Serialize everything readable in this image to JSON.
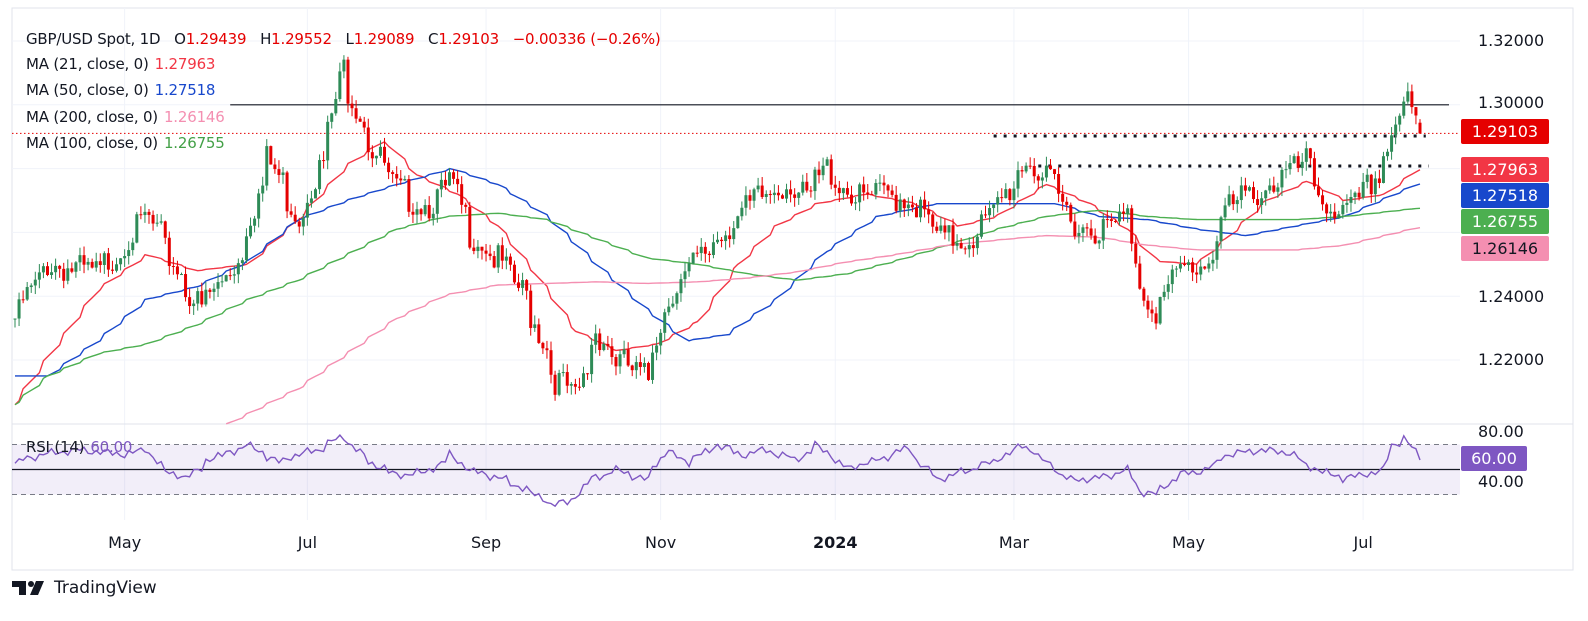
{
  "header": {
    "symbol": "GBP/USD Spot, 1D",
    "open_label": "O",
    "open": "1.29439",
    "high_label": "H",
    "high": "1.29552",
    "low_label": "L",
    "low": "1.29089",
    "close_label": "C",
    "close": "1.29103",
    "change": "−0.00336 (−0.26%)"
  },
  "indicators": [
    {
      "label": "MA (21, close, 0)",
      "value": "1.27963",
      "color": "#f23645"
    },
    {
      "label": "MA (50, close, 0)",
      "value": "1.27518",
      "color": "#1848cc"
    },
    {
      "label": "MA (200, close, 0)",
      "value": "1.26146",
      "color": "#f48fb1"
    },
    {
      "label": "MA (100, close, 0)",
      "value": "1.26755",
      "color": "#4caf50"
    }
  ],
  "rsi": {
    "label": "RSI (14)",
    "value": "60.00",
    "color": "#7e57c2"
  },
  "price_axis": [
    "1.32000",
    "1.30000",
    "1.24000",
    "1.22000"
  ],
  "rsi_axis": [
    "80.00",
    "40.00"
  ],
  "time_axis": [
    {
      "label": "May",
      "date": "2023-05-01"
    },
    {
      "label": "Jul",
      "date": "2023-07-03"
    },
    {
      "label": "Sep",
      "date": "2023-09-01"
    },
    {
      "label": "Nov",
      "date": "2023-11-01"
    },
    {
      "label": "2024",
      "date": "2024-01-01"
    },
    {
      "label": "Mar",
      "date": "2024-03-01"
    },
    {
      "label": "May",
      "date": "2024-05-01"
    },
    {
      "label": "Jul",
      "date": "2024-07-01"
    }
  ],
  "badges": {
    "last_price": "1.29103",
    "ma21": "1.27963",
    "ma50": "1.27518",
    "ma100": "1.26755",
    "ma200": "1.26146",
    "rsi": "60.00"
  },
  "brand": "TradingView",
  "chart_data": {
    "type": "candlestick",
    "title": "GBP/USD Spot, 1D",
    "ylim": [
      1.195,
      1.325
    ],
    "colors": {
      "up": "#2e8b57",
      "down": "#e50000"
    },
    "last_bar": {
      "date": "2024-07-19",
      "o": 1.29439,
      "h": 1.29552,
      "l": 1.29089,
      "c": 1.29103
    },
    "close_approx": [
      [
        "2023-03-23",
        1.233
      ],
      [
        "2023-04-04",
        1.25
      ],
      [
        "2023-04-21",
        1.247
      ],
      [
        "2023-05-08",
        1.265
      ],
      [
        "2023-05-26",
        1.236
      ],
      [
        "2023-06-08",
        1.251
      ],
      [
        "2023-06-19",
        1.283
      ],
      [
        "2023-06-29",
        1.265
      ],
      [
        "2023-07-09",
        1.286
      ],
      [
        "2023-07-14",
        1.312
      ],
      [
        "2023-07-25",
        1.286
      ],
      [
        "2023-08-02",
        1.273
      ],
      [
        "2023-08-13",
        1.268
      ],
      [
        "2023-08-21",
        1.276
      ],
      [
        "2023-08-26",
        1.262
      ],
      [
        "2023-09-06",
        1.251
      ],
      [
        "2023-09-16",
        1.239
      ],
      [
        "2023-09-26",
        1.214
      ],
      [
        "2023-10-03",
        1.2075
      ],
      [
        "2023-10-10",
        1.229
      ],
      [
        "2023-10-17",
        1.22
      ],
      [
        "2023-10-27",
        1.214
      ],
      [
        "2023-11-03",
        1.239
      ],
      [
        "2023-11-14",
        1.251
      ],
      [
        "2023-11-24",
        1.262
      ],
      [
        "2023-12-04",
        1.27
      ],
      [
        "2023-12-15",
        1.276
      ],
      [
        "2023-12-21",
        1.27
      ],
      [
        "2023-12-28",
        1.28
      ],
      [
        "2024-01-08",
        1.27
      ],
      [
        "2024-01-18",
        1.272
      ],
      [
        "2024-01-28",
        1.27
      ],
      [
        "2024-02-04",
        1.258
      ],
      [
        "2024-02-15",
        1.258
      ],
      [
        "2024-02-25",
        1.267
      ],
      [
        "2024-03-06",
        1.283
      ],
      [
        "2024-03-17",
        1.272
      ],
      [
        "2024-03-23",
        1.262
      ],
      [
        "2024-04-03",
        1.261
      ],
      [
        "2024-04-10",
        1.265
      ],
      [
        "2024-04-13",
        1.247
      ],
      [
        "2024-04-20",
        1.234
      ],
      [
        "2024-04-27",
        1.248
      ],
      [
        "2024-05-07",
        1.25
      ],
      [
        "2024-05-14",
        1.267
      ],
      [
        "2024-05-25",
        1.273
      ],
      [
        "2024-06-04",
        1.278
      ],
      [
        "2024-06-11",
        1.282
      ],
      [
        "2024-06-14",
        1.272
      ],
      [
        "2024-06-24",
        1.265
      ],
      [
        "2024-07-01",
        1.272
      ],
      [
        "2024-07-08",
        1.284
      ],
      [
        "2024-07-12",
        1.298
      ],
      [
        "2024-07-16",
        1.3
      ],
      [
        "2024-07-19",
        1.29103
      ]
    ],
    "moving_averages": [
      {
        "name": "MA (21, close, 0)",
        "color": "#f23645",
        "points": [
          [
            "2023-03-23",
            1.206
          ],
          [
            "2023-04-04",
            1.221
          ],
          [
            "2023-04-21",
            1.242
          ],
          [
            "2023-05-08",
            1.253
          ],
          [
            "2023-05-25",
            1.248
          ],
          [
            "2023-06-12",
            1.25
          ],
          [
            "2023-06-29",
            1.264
          ],
          [
            "2023-07-16",
            1.281
          ],
          [
            "2023-07-29",
            1.289
          ],
          [
            "2023-08-09",
            1.278
          ],
          [
            "2023-08-23",
            1.272
          ],
          [
            "2023-09-06",
            1.262
          ],
          [
            "2023-09-19",
            1.247
          ],
          [
            "2023-10-03",
            1.229
          ],
          [
            "2023-10-17",
            1.223
          ],
          [
            "2023-10-31",
            1.225
          ],
          [
            "2023-11-14",
            1.232
          ],
          [
            "2023-11-28",
            1.25
          ],
          [
            "2023-12-11",
            1.262
          ],
          [
            "2023-12-25",
            1.269
          ],
          [
            "2024-01-11",
            1.272
          ],
          [
            "2024-01-28",
            1.269
          ],
          [
            "2024-02-12",
            1.262
          ],
          [
            "2024-02-25",
            1.265
          ],
          [
            "2024-03-13",
            1.275
          ],
          [
            "2024-03-28",
            1.269
          ],
          [
            "2024-04-10",
            1.261
          ],
          [
            "2024-04-20",
            1.251
          ],
          [
            "2024-05-04",
            1.25
          ],
          [
            "2024-05-14",
            1.258
          ],
          [
            "2024-05-28",
            1.27
          ],
          [
            "2024-06-11",
            1.276
          ],
          [
            "2024-06-24",
            1.27
          ],
          [
            "2024-07-08",
            1.272
          ],
          [
            "2024-07-19",
            1.27963
          ]
        ]
      },
      {
        "name": "MA (50, close, 0)",
        "color": "#1848cc",
        "points": [
          [
            "2023-03-23",
            1.215
          ],
          [
            "2023-04-04",
            1.215
          ],
          [
            "2023-04-21",
            1.226
          ],
          [
            "2023-05-08",
            1.239
          ],
          [
            "2023-05-25",
            1.243
          ],
          [
            "2023-06-12",
            1.251
          ],
          [
            "2023-06-29",
            1.264
          ],
          [
            "2023-07-16",
            1.27
          ],
          [
            "2023-08-02",
            1.275
          ],
          [
            "2023-08-21",
            1.28
          ],
          [
            "2023-09-06",
            1.275
          ],
          [
            "2023-09-23",
            1.265
          ],
          [
            "2023-10-10",
            1.25
          ],
          [
            "2023-10-27",
            1.236
          ],
          [
            "2023-11-10",
            1.226
          ],
          [
            "2023-11-24",
            1.228
          ],
          [
            "2023-12-11",
            1.239
          ],
          [
            "2023-12-28",
            1.254
          ],
          [
            "2024-01-15",
            1.265
          ],
          [
            "2024-02-04",
            1.269
          ],
          [
            "2024-02-25",
            1.269
          ],
          [
            "2024-03-17",
            1.269
          ],
          [
            "2024-03-31",
            1.265
          ],
          [
            "2024-04-17",
            1.264
          ],
          [
            "2024-05-04",
            1.261
          ],
          [
            "2024-05-21",
            1.259
          ],
          [
            "2024-06-07",
            1.262
          ],
          [
            "2024-06-24",
            1.265
          ],
          [
            "2024-07-19",
            1.27518
          ]
        ]
      },
      {
        "name": "MA (100, close, 0)",
        "color": "#4caf50",
        "points": [
          [
            "2023-03-23",
            1.206
          ],
          [
            "2023-04-04",
            1.215
          ],
          [
            "2023-04-21",
            1.222
          ],
          [
            "2023-05-08",
            1.225
          ],
          [
            "2023-05-25",
            1.231
          ],
          [
            "2023-06-12",
            1.239
          ],
          [
            "2023-06-29",
            1.245
          ],
          [
            "2023-07-16",
            1.253
          ],
          [
            "2023-08-02",
            1.261
          ],
          [
            "2023-08-19",
            1.265
          ],
          [
            "2023-09-06",
            1.266
          ],
          [
            "2023-09-23",
            1.264
          ],
          [
            "2023-10-10",
            1.258
          ],
          [
            "2023-10-27",
            1.252
          ],
          [
            "2023-11-14",
            1.25
          ],
          [
            "2023-12-01",
            1.247
          ],
          [
            "2023-12-18",
            1.245
          ],
          [
            "2024-01-04",
            1.247
          ],
          [
            "2024-01-21",
            1.251
          ],
          [
            "2024-02-08",
            1.256
          ],
          [
            "2024-02-25",
            1.261
          ],
          [
            "2024-03-13",
            1.265
          ],
          [
            "2024-03-31",
            1.267
          ],
          [
            "2024-04-17",
            1.265
          ],
          [
            "2024-05-04",
            1.264
          ],
          [
            "2024-05-21",
            1.264
          ],
          [
            "2024-06-07",
            1.264
          ],
          [
            "2024-06-24",
            1.265
          ],
          [
            "2024-07-19",
            1.26755
          ]
        ]
      },
      {
        "name": "MA (200, close, 0)",
        "color": "#f48fb1",
        "points": [
          [
            "2023-06-05",
            1.2
          ],
          [
            "2023-06-29",
            1.211
          ],
          [
            "2023-07-16",
            1.222
          ],
          [
            "2023-08-02",
            1.233
          ],
          [
            "2023-08-19",
            1.2404
          ],
          [
            "2023-09-06",
            1.2435
          ],
          [
            "2023-09-23",
            1.244
          ],
          [
            "2023-10-10",
            1.2445
          ],
          [
            "2023-10-27",
            1.244
          ],
          [
            "2023-11-14",
            1.2445
          ],
          [
            "2023-12-01",
            1.2457
          ],
          [
            "2023-12-18",
            1.2476
          ],
          [
            "2024-01-04",
            1.2507
          ],
          [
            "2024-01-21",
            1.253
          ],
          [
            "2024-02-08",
            1.256
          ],
          [
            "2024-02-25",
            1.2576
          ],
          [
            "2024-03-13",
            1.259
          ],
          [
            "2024-03-31",
            1.2585
          ],
          [
            "2024-04-17",
            1.256
          ],
          [
            "2024-05-04",
            1.2545
          ],
          [
            "2024-05-21",
            1.2545
          ],
          [
            "2024-06-07",
            1.2545
          ],
          [
            "2024-06-24",
            1.256
          ],
          [
            "2024-07-19",
            1.26146
          ]
        ]
      }
    ],
    "levels": [
      {
        "kind": "solid",
        "price": 1.3,
        "from": "2023-06-06",
        "to": "2024-07-29"
      },
      {
        "kind": "dotted",
        "price": 1.2902,
        "from": "2024-02-23",
        "to": "2024-07-21"
      },
      {
        "kind": "dotted",
        "price": 1.2808,
        "from": "2024-03-11",
        "to": "2024-07-22"
      },
      {
        "kind": "last-price",
        "price": 1.29103
      }
    ],
    "rsi": {
      "ylim": [
        20,
        90
      ],
      "bands": [
        30,
        50,
        70
      ],
      "points": [
        [
          "2023-03-23",
          55
        ],
        [
          "2023-04-01",
          62
        ],
        [
          "2023-04-14",
          65.6
        ],
        [
          "2023-05-01",
          62
        ],
        [
          "2023-05-08",
          67
        ],
        [
          "2023-05-13",
          49.6
        ],
        [
          "2023-05-22",
          43
        ],
        [
          "2023-05-29",
          57.6
        ],
        [
          "2023-06-12",
          69.6
        ],
        [
          "2023-06-22",
          56
        ],
        [
          "2023-06-29",
          62
        ],
        [
          "2023-07-06",
          66
        ],
        [
          "2023-07-15",
          77.6
        ],
        [
          "2023-07-22",
          58
        ],
        [
          "2023-08-02",
          45.6
        ],
        [
          "2023-08-13",
          48
        ],
        [
          "2023-08-21",
          62
        ],
        [
          "2023-08-26",
          50
        ],
        [
          "2023-09-06",
          43.6
        ],
        [
          "2023-09-16",
          33.6
        ],
        [
          "2023-09-25",
          21.6
        ],
        [
          "2023-10-02",
          25.6
        ],
        [
          "2023-10-07",
          41.6
        ],
        [
          "2023-10-17",
          49.6
        ],
        [
          "2023-10-27",
          41.6
        ],
        [
          "2023-11-03",
          65.6
        ],
        [
          "2023-11-10",
          56
        ],
        [
          "2023-11-21",
          69.6
        ],
        [
          "2023-11-29",
          61.6
        ],
        [
          "2023-12-07",
          65.6
        ],
        [
          "2023-12-18",
          57.6
        ],
        [
          "2023-12-25",
          69.6
        ],
        [
          "2024-01-04",
          51
        ],
        [
          "2024-01-15",
          57.6
        ],
        [
          "2024-01-25",
          67
        ],
        [
          "2024-02-04",
          41.6
        ],
        [
          "2024-02-15",
          49.6
        ],
        [
          "2024-02-25",
          57.6
        ],
        [
          "2024-03-05",
          69.6
        ],
        [
          "2024-03-12",
          57.6
        ],
        [
          "2024-03-21",
          41.6
        ],
        [
          "2024-03-31",
          43
        ],
        [
          "2024-04-10",
          49.6
        ],
        [
          "2024-04-13",
          33.6
        ],
        [
          "2024-04-20",
          29.6
        ],
        [
          "2024-04-27",
          45.6
        ],
        [
          "2024-05-07",
          49.6
        ],
        [
          "2024-05-14",
          61.6
        ],
        [
          "2024-05-25",
          65.6
        ],
        [
          "2024-06-04",
          64
        ],
        [
          "2024-06-14",
          49.6
        ],
        [
          "2024-06-24",
          43
        ],
        [
          "2024-07-08",
          49.6
        ],
        [
          "2024-07-10",
          69.6
        ],
        [
          "2024-07-15",
          75
        ],
        [
          "2024-07-19",
          60
        ]
      ]
    }
  }
}
